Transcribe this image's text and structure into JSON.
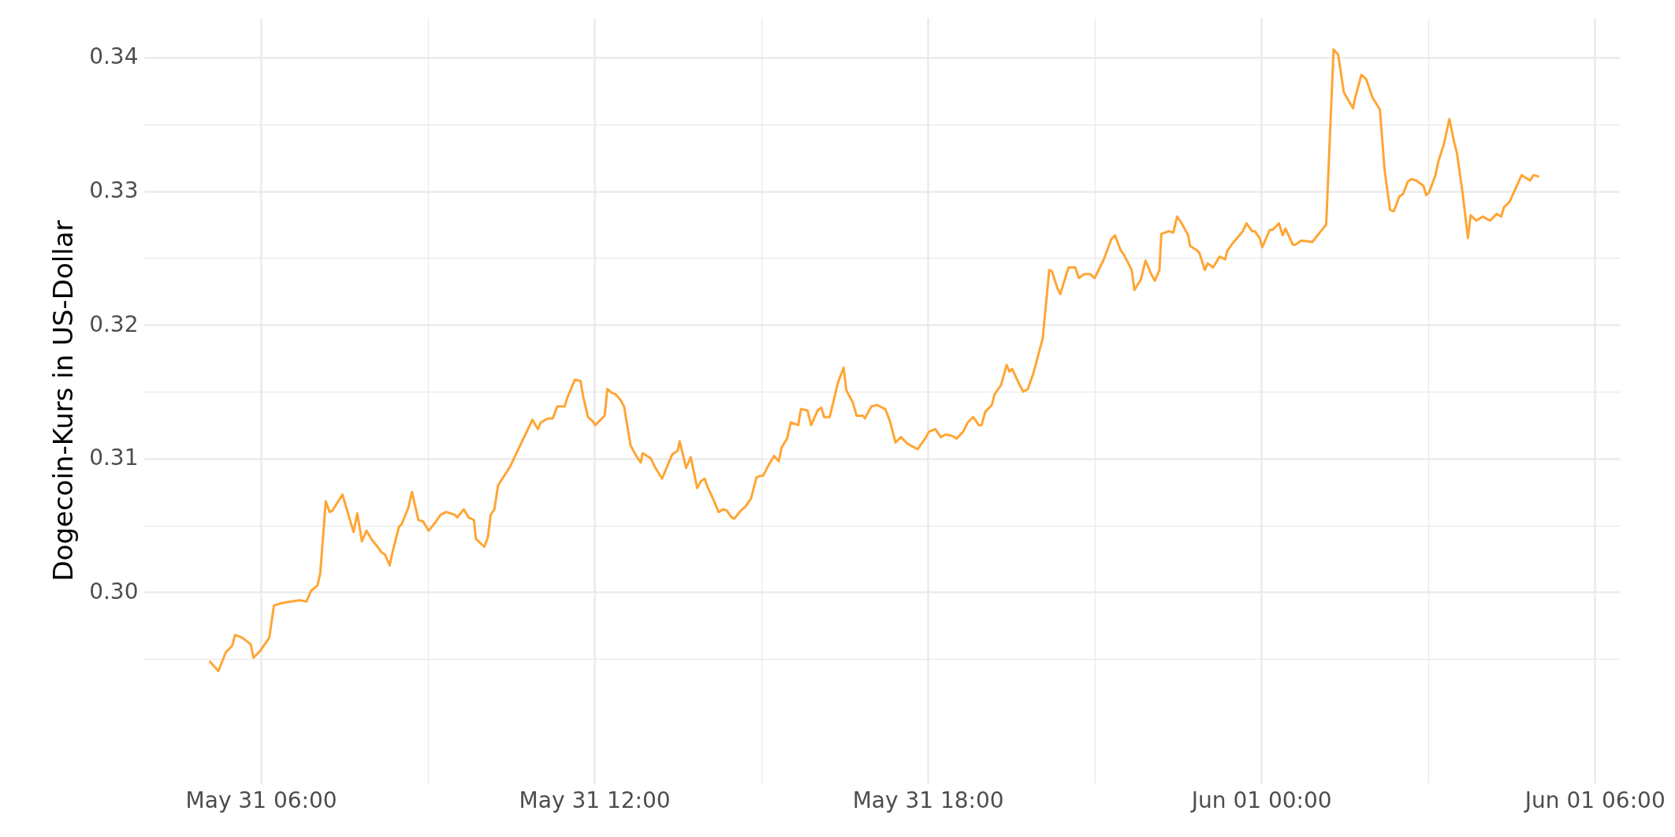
{
  "chart_data": {
    "type": "line",
    "ylabel": "Dogecoin-Kurs in US-Dollar",
    "xlim": [
      "--05-31T03:54",
      "--06-01T06:27"
    ],
    "ylim": [
      0.2857,
      0.343
    ],
    "xticks": [
      {
        "value": "--05-31T06:00",
        "label": "May 31 06:00"
      },
      {
        "value": "--05-31T09:00",
        "label": null
      },
      {
        "value": "--05-31T12:00",
        "label": "May 31 12:00"
      },
      {
        "value": "--05-31T15:00",
        "label": null
      },
      {
        "value": "--05-31T18:00",
        "label": "May 31 18:00"
      },
      {
        "value": "--05-31T21:00",
        "label": null
      },
      {
        "value": "--06-01T00:00",
        "label": "Jun 01 00:00"
      },
      {
        "value": "--06-01T03:00",
        "label": null
      },
      {
        "value": "--06-01T06:00",
        "label": "Jun 01 06:00"
      }
    ],
    "yticks": [
      {
        "value": 0.295,
        "label": null
      },
      {
        "value": 0.3,
        "label": "0.30"
      },
      {
        "value": 0.305,
        "label": null
      },
      0.31,
      {
        "value": 0.315,
        "label": null
      },
      0.32,
      {
        "value": 0.325,
        "label": null
      },
      0.33,
      {
        "value": 0.335,
        "label": null
      },
      0.34
    ],
    "grid": true,
    "x": [
      "--05-31T05:05",
      "--05-31T05:14",
      "--05-31T05:22",
      "--05-31T05:29",
      "--05-31T05:32",
      "--05-31T05:40",
      "--05-31T05:49",
      "--05-31T05:52",
      "--05-31T05:59",
      "--05-31T06:09",
      "--05-31T06:14",
      "--05-31T06:23",
      "--05-31T06:42",
      "--05-31T06:49",
      "--05-31T06:54",
      "--05-31T07:01",
      "--05-31T07:04",
      "--05-31T07:10",
      "--05-31T07:14",
      "--05-31T07:17",
      "--05-31T07:28",
      "--05-31T07:40",
      "--05-31T07:44",
      "--05-31T07:49",
      "--05-31T07:54",
      "--05-31T08:00",
      "--05-31T08:07",
      "--05-31T08:10",
      "--05-31T08:14",
      "--05-31T08:19",
      "--05-31T08:22",
      "--05-31T08:29",
      "--05-31T08:32",
      "--05-31T08:39",
      "--05-31T08:43",
      "--05-31T08:50",
      "--05-31T08:55",
      "--05-31T09:01",
      "--05-31T09:08",
      "--05-31T09:14",
      "--05-31T09:20",
      "--05-31T09:29",
      "--05-31T09:32",
      "--05-31T09:39",
      "--05-31T09:44",
      "--05-31T09:50",
      "--05-31T09:52",
      "--05-31T10:01",
      "--05-31T10:05",
      "--05-31T10:08",
      "--05-31T10:12",
      "--05-31T10:16",
      "--05-31T10:29",
      "--05-31T10:53",
      "--05-31T10:59",
      "--05-31T11:02",
      "--05-31T11:10",
      "--05-31T11:15",
      "--05-31T11:20",
      "--05-31T11:28",
      "--05-31T11:31",
      "--05-31T11:39",
      "--05-31T11:45",
      "--05-31T11:48",
      "--05-31T11:53",
      "--05-31T11:58",
      "--05-31T12:01",
      "--05-31T12:11",
      "--05-31T12:14",
      "--05-31T12:19",
      "--05-31T12:23",
      "--05-31T12:28",
      "--05-31T12:32",
      "--05-31T12:39",
      "--05-31T12:45",
      "--05-31T12:50",
      "--05-31T12:52",
      "--05-31T13:01",
      "--05-31T13:05",
      "--05-31T13:13",
      "--05-31T13:24",
      "--05-31T13:30",
      "--05-31T13:32",
      "--05-31T13:39",
      "--05-31T13:44",
      "--05-31T13:51",
      "--05-31T13:55",
      "--05-31T13:59",
      "--05-31T14:02",
      "--05-31T14:08",
      "--05-31T14:14",
      "--05-31T14:19",
      "--05-31T14:23",
      "--05-31T14:28",
      "--05-31T14:31",
      "--05-31T14:38",
      "--05-31T14:43",
      "--05-31T14:49",
      "--05-31T14:55",
      "--05-31T14:59",
      "--05-31T15:02",
      "--05-31T15:08",
      "--05-31T15:14",
      "--05-31T15:19",
      "--05-31T15:22",
      "--05-31T15:28",
      "--05-31T15:32",
      "--05-31T15:40",
      "--05-31T15:43",
      "--05-31T15:50",
      "--05-31T15:54",
      "--05-31T16:01",
      "--05-31T16:05",
      "--05-31T16:08",
      "--05-31T16:14",
      "--05-31T16:23",
      "--05-31T16:29",
      "--05-31T16:32",
      "--05-31T16:39",
      "--05-31T16:43",
      "--05-31T16:50",
      "--05-31T16:52",
      "--05-31T16:59",
      "--05-31T17:05",
      "--05-31T17:14",
      "--05-31T17:19",
      "--05-31T17:25",
      "--05-31T17:31",
      "--05-31T17:38",
      "--05-31T17:49",
      "--05-31T17:58",
      "--05-31T18:01",
      "--05-31T18:08",
      "--05-31T18:14",
      "--05-31T18:19",
      "--05-31T18:26",
      "--05-31T18:31",
      "--05-31T18:38",
      "--05-31T18:43",
      "--05-31T18:49",
      "--05-31T18:55",
      "--05-31T18:58",
      "--05-31T19:02",
      "--05-31T19:09",
      "--05-31T19:12",
      "--05-31T19:19",
      "--05-31T19:25",
      "--05-31T19:28",
      "--05-31T19:31",
      "--05-31T19:39",
      "--05-31T19:43",
      "--05-31T19:48",
      "--05-31T19:54",
      "--05-31T19:59",
      "--05-31T20:04",
      "--05-31T20:11",
      "--05-31T20:14",
      "--05-31T20:20",
      "--05-31T20:23",
      "--05-31T20:30",
      "--05-31T20:32",
      "--05-31T20:39",
      "--05-31T20:43",
      "--05-31T20:49",
      "--05-31T20:55",
      "--05-31T21:00",
      "--05-31T21:10",
      "--05-31T21:18",
      "--05-31T21:22",
      "--05-31T21:28",
      "--05-31T21:32",
      "--05-31T21:40",
      "--05-31T21:43",
      "--05-31T21:50",
      "--05-31T21:55",
      "--05-31T22:01",
      "--05-31T22:05",
      "--05-31T22:10",
      "--05-31T22:12",
      "--05-31T22:20",
      "--05-31T22:25",
      "--05-31T22:29",
      "--05-31T22:34",
      "--05-31T22:41",
      "--05-31T22:43",
      "--05-31T22:50",
      "--05-31T22:53",
      "--05-31T22:59",
      "--05-31T23:02",
      "--05-31T23:08",
      "--05-31T23:15",
      "--05-31T23:21",
      "--05-31T23:23",
      "--05-31T23:29",
      "--05-31T23:40",
      "--05-31T23:44",
      "--05-31T23:50",
      "--05-31T23:53",
      "--05-31T23:58",
      "--06-01T00:01",
      "--06-01T00:09",
      "--06-01T00:12",
      "--06-01T00:19",
      "--06-01T00:23",
      "--06-01T00:26",
      "--06-01T00:34",
      "--06-01T00:37",
      "--06-01T00:43",
      "--06-01T00:55",
      "--06-01T01:10",
      "--06-01T01:18",
      "--06-01T01:23",
      "--06-01T01:29",
      "--06-01T01:34",
      "--06-01T01:39",
      "--06-01T01:41",
      "--06-01T01:48",
      "--06-01T01:53",
      "--06-01T02:00",
      "--06-01T02:08",
      "--06-01T02:13",
      "--06-01T02:19",
      "--06-01T02:23",
      "--06-01T02:29",
      "--06-01T02:33",
      "--06-01T02:38",
      "--06-01T02:42",
      "--06-01T02:47",
      "--06-01T02:55",
      "--06-01T02:58",
      "--06-01T03:01",
      "--06-01T03:08",
      "--06-01T03:11",
      "--06-01T03:17",
      "--06-01T03:23",
      "--06-01T03:28",
      "--06-01T03:31",
      "--06-01T03:37",
      "--06-01T03:43",
      "--06-01T03:46",
      "--06-01T03:52",
      "--06-01T03:59",
      "--06-01T04:04",
      "--06-01T04:07",
      "--06-01T04:14",
      "--06-01T04:19",
      "--06-01T04:22",
      "--06-01T04:28",
      "--06-01T04:41",
      "--06-01T04:50",
      "--06-01T04:54",
      "--06-01T04:59"
    ],
    "series": [
      {
        "color": "#ffa534",
        "values": [
          0.2948,
          0.2941,
          0.2955,
          0.296,
          0.2968,
          0.2966,
          0.2961,
          0.2951,
          0.2956,
          0.2966,
          0.299,
          0.2992,
          0.2994,
          0.2993,
          0.3001,
          0.3005,
          0.3014,
          0.3068,
          0.306,
          0.3061,
          0.3073,
          0.3045,
          0.3059,
          0.3038,
          0.3046,
          0.3039,
          0.3033,
          0.303,
          0.3028,
          0.302,
          0.303,
          0.3049,
          0.3051,
          0.3063,
          0.3075,
          0.3054,
          0.3053,
          0.3046,
          0.3052,
          0.3058,
          0.306,
          0.3058,
          0.3056,
          0.3062,
          0.3056,
          0.3054,
          0.304,
          0.3034,
          0.3041,
          0.3058,
          0.3062,
          0.308,
          0.3094,
          0.3129,
          0.3122,
          0.3127,
          0.313,
          0.313,
          0.3139,
          0.3139,
          0.3146,
          0.3159,
          0.3158,
          0.3146,
          0.3131,
          0.3128,
          0.3125,
          0.3132,
          0.3152,
          0.3149,
          0.3148,
          0.3144,
          0.3139,
          0.311,
          0.3102,
          0.3097,
          0.3104,
          0.31,
          0.3094,
          0.3085,
          0.3103,
          0.3106,
          0.3113,
          0.3093,
          0.3101,
          0.3078,
          0.3083,
          0.3085,
          0.3079,
          0.307,
          0.306,
          0.3062,
          0.3061,
          0.3056,
          0.3055,
          0.3061,
          0.3064,
          0.307,
          0.3086,
          0.3087,
          0.3087,
          0.3095,
          0.3102,
          0.3098,
          0.3108,
          0.3115,
          0.3127,
          0.3125,
          0.3137,
          0.3136,
          0.3125,
          0.3136,
          0.3138,
          0.3131,
          0.3131,
          0.3157,
          0.3168,
          0.3151,
          0.3142,
          0.3132,
          0.3132,
          0.313,
          0.3139,
          0.314,
          0.3137,
          0.3128,
          0.3112,
          0.3116,
          0.3111,
          0.3107,
          0.3116,
          0.312,
          0.3122,
          0.3116,
          0.3118,
          0.3117,
          0.3115,
          0.312,
          0.3127,
          0.3131,
          0.3125,
          0.3125,
          0.3135,
          0.314,
          0.3148,
          0.3155,
          0.317,
          0.3165,
          0.3167,
          0.3155,
          0.315,
          0.3152,
          0.3164,
          0.3177,
          0.319,
          0.3241,
          0.324,
          0.3227,
          0.3223,
          0.3239,
          0.3243,
          0.3243,
          0.3235,
          0.3238,
          0.3238,
          0.3235,
          0.3249,
          0.3264,
          0.3267,
          0.3256,
          0.3252,
          0.3241,
          0.3226,
          0.3234,
          0.3248,
          0.3238,
          0.3233,
          0.3241,
          0.3268,
          0.327,
          0.3269,
          0.3281,
          0.3276,
          0.3267,
          0.3259,
          0.3256,
          0.3254,
          0.3241,
          0.3246,
          0.3243,
          0.3251,
          0.3249,
          0.3255,
          0.3261,
          0.327,
          0.3276,
          0.327,
          0.327,
          0.3265,
          0.3258,
          0.3271,
          0.3271,
          0.3276,
          0.3267,
          0.3272,
          0.326,
          0.326,
          0.3263,
          0.3262,
          0.3275,
          0.3406,
          0.3402,
          0.3374,
          0.3368,
          0.3362,
          0.3369,
          0.3387,
          0.3384,
          0.337,
          0.3361,
          0.3316,
          0.3286,
          0.3285,
          0.3296,
          0.3298,
          0.3307,
          0.3309,
          0.3308,
          0.3304,
          0.3297,
          0.3299,
          0.3312,
          0.3322,
          0.3335,
          0.3354,
          0.3337,
          0.3329,
          0.33,
          0.3265,
          0.3282,
          0.3278,
          0.3281,
          0.3279,
          0.3278,
          0.3283,
          0.3281,
          0.3288,
          0.3292,
          0.3312,
          0.3308,
          0.3312,
          0.3311
        ]
      }
    ]
  }
}
